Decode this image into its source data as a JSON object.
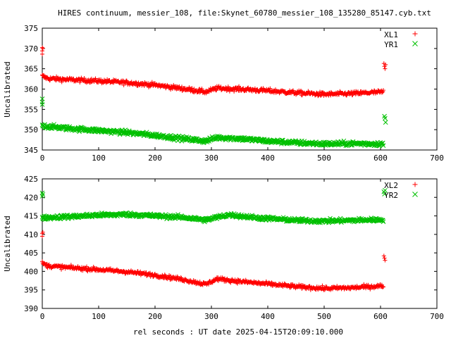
{
  "title": "HIRES continuum, messier_108, file:Skynet_60780_messier_108_135280_85147.cyb.txt",
  "xlabel": "rel seconds : UT date 2025-04-15T20:09:10.000",
  "colors": {
    "red": "#ff0000",
    "green": "#00c000"
  },
  "chart_data": [
    {
      "type": "scatter",
      "ylabel": "Uncalibrated",
      "xlim": [
        0,
        700
      ],
      "ylim": [
        345,
        375
      ],
      "xticks": [
        0,
        100,
        200,
        300,
        400,
        500,
        600,
        700
      ],
      "yticks": [
        345,
        350,
        355,
        360,
        365,
        370,
        375
      ],
      "legend_position": "top-right",
      "series": [
        {
          "name": "XL1",
          "marker": "+",
          "color": "#ff0000",
          "profile": [
            [
              0,
              363.2
            ],
            [
              10,
              362.6
            ],
            [
              50,
              362.3
            ],
            [
              100,
              362.0
            ],
            [
              150,
              361.6
            ],
            [
              200,
              361.0
            ],
            [
              250,
              360.1
            ],
            [
              290,
              359.3
            ],
            [
              310,
              360.2
            ],
            [
              350,
              360.0
            ],
            [
              400,
              359.6
            ],
            [
              450,
              359.1
            ],
            [
              500,
              358.7
            ],
            [
              550,
              358.9
            ],
            [
              605,
              359.3
            ]
          ],
          "noise": 0.5,
          "outliers": [
            [
              0,
              370.2
            ],
            [
              0,
              369.4
            ],
            [
              0,
              368.6
            ],
            [
              1,
              370.0
            ],
            [
              606,
              366.3
            ],
            [
              607,
              365.6
            ],
            [
              608,
              365.0
            ],
            [
              609,
              366.0
            ]
          ]
        },
        {
          "name": "YR1",
          "marker": "x",
          "color": "#00c000",
          "profile": [
            [
              0,
              351.0
            ],
            [
              10,
              350.8
            ],
            [
              50,
              350.3
            ],
            [
              100,
              349.8
            ],
            [
              150,
              349.3
            ],
            [
              200,
              348.6
            ],
            [
              250,
              347.8
            ],
            [
              290,
              347.2
            ],
            [
              310,
              348.1
            ],
            [
              350,
              347.8
            ],
            [
              400,
              347.2
            ],
            [
              450,
              346.8
            ],
            [
              500,
              346.5
            ],
            [
              550,
              346.6
            ],
            [
              605,
              346.5
            ]
          ],
          "noise": 0.5,
          "outliers": [
            [
              0,
              357.6
            ],
            [
              0,
              356.8
            ],
            [
              0,
              356.2
            ],
            [
              607,
              353.3
            ],
            [
              608,
              352.8
            ],
            [
              609,
              351.8
            ]
          ]
        }
      ]
    },
    {
      "type": "scatter",
      "ylabel": "Uncalibrated",
      "xlim": [
        0,
        700
      ],
      "ylim": [
        390,
        425
      ],
      "xticks": [
        0,
        100,
        200,
        300,
        400,
        500,
        600,
        700
      ],
      "yticks": [
        390,
        395,
        400,
        405,
        410,
        415,
        420,
        425
      ],
      "legend_position": "top-right",
      "series": [
        {
          "name": "XL2",
          "marker": "+",
          "color": "#ff0000",
          "profile": [
            [
              0,
              402.2
            ],
            [
              10,
              401.5
            ],
            [
              50,
              401.0
            ],
            [
              100,
              400.5
            ],
            [
              150,
              399.9
            ],
            [
              200,
              399.0
            ],
            [
              250,
              397.8
            ],
            [
              290,
              396.5
            ],
            [
              310,
              398.0
            ],
            [
              350,
              397.3
            ],
            [
              400,
              396.6
            ],
            [
              450,
              395.9
            ],
            [
              500,
              395.4
            ],
            [
              550,
              395.6
            ],
            [
              605,
              396.1
            ]
          ],
          "noise": 0.5,
          "outliers": [
            [
              0,
              410.2
            ],
            [
              0,
              409.5
            ],
            [
              1,
              410.6
            ],
            [
              606,
              404.2
            ],
            [
              607,
              403.6
            ],
            [
              608,
              403.0
            ]
          ]
        },
        {
          "name": "YR2",
          "marker": "x",
          "color": "#00c000",
          "profile": [
            [
              0,
              414.5
            ],
            [
              50,
              414.8
            ],
            [
              100,
              415.2
            ],
            [
              150,
              415.4
            ],
            [
              200,
              415.0
            ],
            [
              250,
              414.6
            ],
            [
              290,
              413.9
            ],
            [
              330,
              415.3
            ],
            [
              380,
              414.5
            ],
            [
              450,
              413.8
            ],
            [
              500,
              413.6
            ],
            [
              550,
              413.8
            ],
            [
              605,
              414.0
            ]
          ],
          "noise": 0.5,
          "outliers": [
            [
              0,
              421.2
            ],
            [
              0,
              420.3
            ],
            [
              1,
              420.8
            ],
            [
              606,
              421.5
            ],
            [
              607,
              420.9
            ],
            [
              608,
              421.9
            ]
          ]
        }
      ]
    }
  ]
}
